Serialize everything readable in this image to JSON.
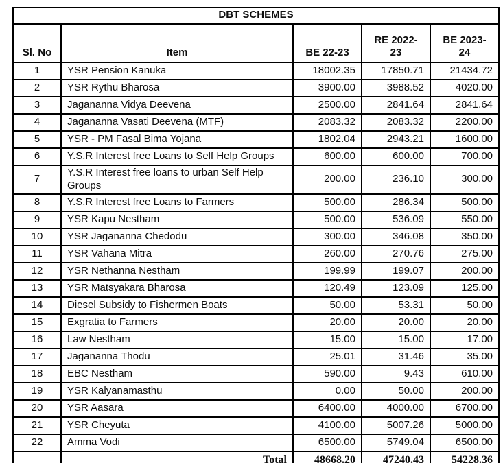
{
  "page": {
    "background_color": "#ffffff",
    "text_color": "#0d0d0d",
    "border_color": "#000000"
  },
  "table": {
    "title": "DBT SCHEMES",
    "columns": [
      "Sl. No",
      "Item",
      "BE 22-23",
      "RE 2022-23",
      "BE 2023-24"
    ],
    "rows": [
      [
        "1",
        "YSR Pension Kanuka",
        "18002.35",
        "17850.71",
        "21434.72"
      ],
      [
        "2",
        "YSR Rythu Bharosa",
        "3900.00",
        "3988.52",
        "4020.00"
      ],
      [
        "3",
        "Jagananna Vidya Deevena",
        "2500.00",
        "2841.64",
        "2841.64"
      ],
      [
        "4",
        "Jagananna Vasati Deevena (MTF)",
        "2083.32",
        "2083.32",
        "2200.00"
      ],
      [
        "5",
        "YSR - PM Fasal Bima Yojana",
        "1802.04",
        "2943.21",
        "1600.00"
      ],
      [
        "6",
        "Y.S.R Interest free Loans to Self Help Groups",
        "600.00",
        "600.00",
        "700.00"
      ],
      [
        "7",
        "Y.S.R Interest free loans to urban Self Help Groups",
        "200.00",
        "236.10",
        "300.00"
      ],
      [
        "8",
        "Y.S.R Interest free Loans to Farmers",
        "500.00",
        "286.34",
        "500.00"
      ],
      [
        "9",
        "YSR Kapu Nestham",
        "500.00",
        "536.09",
        "550.00"
      ],
      [
        "10",
        "YSR Jagananna Chedodu",
        "300.00",
        "346.08",
        "350.00"
      ],
      [
        "11",
        "YSR Vahana Mitra",
        "260.00",
        "270.76",
        "275.00"
      ],
      [
        "12",
        "YSR Nethanna Nestham",
        "199.99",
        "199.07",
        "200.00"
      ],
      [
        "13",
        "YSR Matsyakara Bharosa",
        "120.49",
        "123.09",
        "125.00"
      ],
      [
        "14",
        "Diesel Subsidy to Fishermen Boats",
        "50.00",
        "53.31",
        "50.00"
      ],
      [
        "15",
        "Exgratia to Farmers",
        "20.00",
        "20.00",
        "20.00"
      ],
      [
        "16",
        "Law Nestham",
        "15.00",
        "15.00",
        "17.00"
      ],
      [
        "17",
        "Jagananna Thodu",
        "25.01",
        "31.46",
        "35.00"
      ],
      [
        "18",
        "EBC Nestham",
        "590.00",
        "9.43",
        "610.00"
      ],
      [
        "19",
        "YSR Kalyanamasthu",
        "0.00",
        "50.00",
        "200.00"
      ],
      [
        "20",
        "YSR Aasara",
        "6400.00",
        "4000.00",
        "6700.00"
      ],
      [
        "21",
        "YSR Cheyuta",
        "4100.00",
        "5007.26",
        "5000.00"
      ],
      [
        "22",
        "Amma Vodi",
        "6500.00",
        "5749.04",
        "6500.00"
      ]
    ],
    "total": {
      "label": "Total",
      "be_22_23": "48668.20",
      "re_2022_23": "47240.43",
      "be_2023_24": "54228.36"
    }
  },
  "chart_data": {
    "type": "table",
    "title": "DBT SCHEMES",
    "columns": [
      "Sl. No",
      "Item",
      "BE 22-23",
      "RE 2022-23",
      "BE 2023-24"
    ],
    "series": [
      {
        "name": "BE 22-23",
        "values": [
          18002.35,
          3900.0,
          2500.0,
          2083.32,
          1802.04,
          600.0,
          200.0,
          500.0,
          500.0,
          300.0,
          260.0,
          199.99,
          120.49,
          50.0,
          20.0,
          15.0,
          25.01,
          590.0,
          0.0,
          6400.0,
          4100.0,
          6500.0
        ]
      },
      {
        "name": "RE 2022-23",
        "values": [
          17850.71,
          3988.52,
          2841.64,
          2083.32,
          2943.21,
          600.0,
          236.1,
          286.34,
          536.09,
          346.08,
          270.76,
          199.07,
          123.09,
          53.31,
          20.0,
          15.0,
          31.46,
          9.43,
          50.0,
          4000.0,
          5007.26,
          5749.04
        ]
      },
      {
        "name": "BE 2023-24",
        "values": [
          21434.72,
          4020.0,
          2841.64,
          2200.0,
          1600.0,
          700.0,
          300.0,
          500.0,
          550.0,
          350.0,
          275.0,
          200.0,
          125.0,
          50.0,
          20.0,
          17.0,
          35.0,
          610.0,
          200.0,
          6700.0,
          5000.0,
          6500.0
        ]
      }
    ],
    "categories": [
      "YSR Pension Kanuka",
      "YSR Rythu Bharosa",
      "Jagananna Vidya Deevena",
      "Jagananna Vasati Deevena (MTF)",
      "YSR - PM Fasal Bima Yojana",
      "Y.S.R Interest free Loans to Self Help Groups",
      "Y.S.R Interest free loans to urban Self Help Groups",
      "Y.S.R Interest free Loans to Farmers",
      "YSR Kapu Nestham",
      "YSR Jagananna Chedodu",
      "YSR Vahana Mitra",
      "YSR Nethanna Nestham",
      "YSR Matsyakara Bharosa",
      "Diesel Subsidy to Fishermen Boats",
      "Exgratia to Farmers",
      "Law Nestham",
      "Jagananna Thodu",
      "EBC Nestham",
      "YSR Kalyanamasthu",
      "YSR Aasara",
      "YSR Cheyuta",
      "Amma Vodi"
    ],
    "totals": {
      "BE 22-23": 48668.2,
      "RE 2022-23": 47240.43,
      "BE 2023-24": 54228.36
    }
  }
}
